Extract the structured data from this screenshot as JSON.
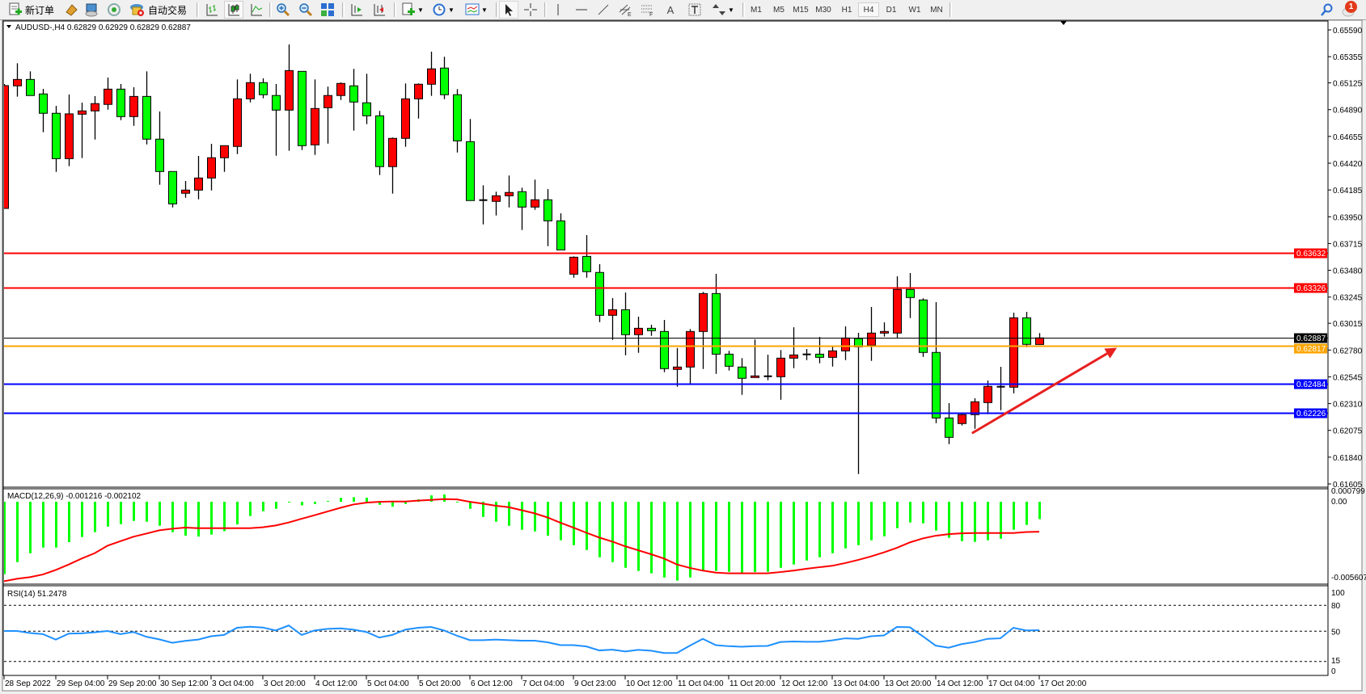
{
  "toolbar": {
    "new_order_label": "新订单",
    "auto_trading_label": "自动交易",
    "timeframes": [
      "M1",
      "M5",
      "M15",
      "M30",
      "H1",
      "H4",
      "D1",
      "W1",
      "MN"
    ],
    "active_timeframe": "H4",
    "notification_count": "1",
    "icons": [
      "new-order-icon",
      "history-center-icon",
      "market-watch-icon",
      "signals-icon",
      "auto-trading-icon",
      "bar-chart-icon",
      "candlestick-icon",
      "line-chart-icon",
      "zoom-in-icon",
      "zoom-out-icon",
      "tile-windows-icon",
      "chart-shift-icon",
      "auto-scroll-icon",
      "new-chart-icon",
      "periodicity-icon",
      "templates-icon",
      "cursor-icon",
      "crosshair-icon",
      "vertical-line-icon",
      "horizontal-line-icon",
      "trendline-icon",
      "equidistant-channel-icon",
      "fibonacci-icon",
      "text-icon",
      "text-label-icon",
      "arrows-icon",
      "search-icon",
      "notifications-icon"
    ]
  },
  "chart": {
    "title": "AUDUSD-,H4  0.62829 0.62929 0.62829 0.62887",
    "colors": {
      "bull": "#ff0000",
      "bear": "#00ff00",
      "outline": "#000000",
      "macd_hist": "#00ff00",
      "macd_signal": "#ff0000",
      "rsi": "#1e90ff",
      "arrow": "#e82020"
    }
  },
  "chart_data": [
    {
      "type": "candlestick",
      "symbol": "AUDUSD-",
      "timeframe": "H4",
      "ohlc_fields": [
        "open",
        "high",
        "low",
        "close"
      ],
      "ylim": [
        0.61605,
        0.6559
      ],
      "y_ticks": [
        "0.65590",
        "0.65355",
        "0.65125",
        "0.64890",
        "0.64655",
        "0.64420",
        "0.64185",
        "0.63950",
        "0.63715",
        "0.63480",
        "0.63245",
        "0.63015",
        "0.62780",
        "0.62545",
        "0.62310",
        "0.62075",
        "0.61840",
        "0.61605"
      ],
      "x_ticks": [
        "28 Sep 2022",
        "29 Sep 04:00",
        "29 Sep 20:00",
        "30 Sep 12:00",
        "3 Oct 04:00",
        "3 Oct 20:00",
        "4 Oct 12:00",
        "5 Oct 04:00",
        "5 Oct 20:00",
        "6 Oct 12:00",
        "7 Oct 04:00",
        "9 Oct 23:00",
        "10 Oct 12:00",
        "11 Oct 04:00",
        "11 Oct 20:00",
        "12 Oct 12:00",
        "13 Oct 04:00",
        "13 Oct 20:00",
        "14 Oct 12:00",
        "17 Oct 04:00",
        "17 Oct 20:00"
      ],
      "x_tick_every_n_bars": 4,
      "candles": [
        [
          0.64023,
          0.65115,
          0.64023,
          0.65101
        ],
        [
          0.65099,
          0.65297,
          0.65004,
          0.65155
        ],
        [
          0.65155,
          0.65226,
          0.65014,
          0.65014
        ],
        [
          0.65028,
          0.65072,
          0.64692,
          0.64858
        ],
        [
          0.64858,
          0.64923,
          0.64344,
          0.6446
        ],
        [
          0.6446,
          0.65023,
          0.64394,
          0.64853
        ],
        [
          0.6485,
          0.64952,
          0.64465,
          0.64879
        ],
        [
          0.64879,
          0.65009,
          0.64628,
          0.64943
        ],
        [
          0.64936,
          0.65172,
          0.6489,
          0.6507
        ],
        [
          0.6507,
          0.65115,
          0.64798,
          0.64829
        ],
        [
          0.64829,
          0.65087,
          0.64748,
          0.65006
        ],
        [
          0.65006,
          0.65226,
          0.64585,
          0.64631
        ],
        [
          0.64631,
          0.64874,
          0.64231,
          0.64347
        ],
        [
          0.64347,
          0.64347,
          0.64032,
          0.64063
        ],
        [
          0.64156,
          0.64264,
          0.64117,
          0.64184
        ],
        [
          0.64184,
          0.64484,
          0.64103,
          0.6429
        ],
        [
          0.6429,
          0.6459,
          0.64181,
          0.64468
        ],
        [
          0.64468,
          0.64574,
          0.64344,
          0.64574
        ],
        [
          0.64567,
          0.65155,
          0.645,
          0.64985
        ],
        [
          0.64985,
          0.65205,
          0.64954,
          0.65127
        ],
        [
          0.65127,
          0.65165,
          0.6499,
          0.65021
        ],
        [
          0.65014,
          0.65115,
          0.64486,
          0.64886
        ],
        [
          0.64886,
          0.65462,
          0.64529,
          0.65233
        ],
        [
          0.65226,
          0.65226,
          0.64536,
          0.64574
        ],
        [
          0.64581,
          0.65155,
          0.64493,
          0.649
        ],
        [
          0.64907,
          0.65092,
          0.64592,
          0.65014
        ],
        [
          0.65014,
          0.65129,
          0.64975,
          0.6512
        ],
        [
          0.65099,
          0.65248,
          0.64706,
          0.64957
        ],
        [
          0.6495,
          0.65205,
          0.64763,
          0.64836
        ],
        [
          0.64836,
          0.64879,
          0.64316,
          0.6439
        ],
        [
          0.6439,
          0.64645,
          0.64153,
          0.64638
        ],
        [
          0.64638,
          0.6512,
          0.64564,
          0.64985
        ],
        [
          0.64985,
          0.6512,
          0.64812,
          0.65113
        ],
        [
          0.65113,
          0.65399,
          0.65011,
          0.65248
        ],
        [
          0.65255,
          0.65354,
          0.64982,
          0.65021
        ],
        [
          0.65021,
          0.6507,
          0.64514,
          0.64616
        ],
        [
          0.64609,
          0.64808,
          0.64092,
          0.64092
        ],
        [
          0.64096,
          0.64226,
          0.63883,
          0.64096
        ],
        [
          0.64085,
          0.6417,
          0.63961,
          0.64134
        ],
        [
          0.64134,
          0.64312,
          0.64032,
          0.64163
        ],
        [
          0.6417,
          0.64205,
          0.63834,
          0.64035
        ],
        [
          0.64035,
          0.64276,
          0.64011,
          0.64099
        ],
        [
          0.64099,
          0.64193,
          0.63692,
          0.63914
        ],
        [
          0.63914,
          0.6398,
          0.63659,
          0.63659
        ],
        [
          0.63446,
          0.63602,
          0.63415,
          0.63595
        ],
        [
          0.63602,
          0.63789,
          0.63415,
          0.63468
        ],
        [
          0.63461,
          0.63534,
          0.63025,
          0.63085
        ],
        [
          0.63085,
          0.63236,
          0.62869,
          0.63134
        ],
        [
          0.63134,
          0.63285,
          0.62734,
          0.62915
        ],
        [
          0.62915,
          0.63073,
          0.62756,
          0.62971
        ],
        [
          0.62971,
          0.63002,
          0.62905,
          0.6295
        ],
        [
          0.62943,
          0.63044,
          0.62586,
          0.62617
        ],
        [
          0.6261,
          0.62798,
          0.62458,
          0.62631
        ],
        [
          0.62631,
          0.62964,
          0.62486,
          0.62943
        ],
        [
          0.62943,
          0.6329,
          0.62614,
          0.63276
        ],
        [
          0.63276,
          0.63449,
          0.62571,
          0.62744
        ],
        [
          0.62744,
          0.62773,
          0.626,
          0.62638
        ],
        [
          0.62631,
          0.62709,
          0.62387,
          0.62532
        ],
        [
          0.62539,
          0.62874,
          0.62539,
          0.62553
        ],
        [
          0.6255,
          0.62739,
          0.62515,
          0.6255
        ],
        [
          0.62546,
          0.6278,
          0.62344,
          0.62709
        ],
        [
          0.62709,
          0.6298,
          0.62621,
          0.62737
        ],
        [
          0.62742,
          0.62789,
          0.62692,
          0.62742
        ],
        [
          0.62744,
          0.62895,
          0.62664,
          0.62716
        ],
        [
          0.62716,
          0.62813,
          0.62635,
          0.62773
        ],
        [
          0.62773,
          0.62988,
          0.62692,
          0.62886
        ],
        [
          0.62881,
          0.62931,
          0.61692,
          0.62808
        ],
        [
          0.62822,
          0.63158,
          0.62685,
          0.62929
        ],
        [
          0.62929,
          0.63023,
          0.62898,
          0.62943
        ],
        [
          0.62929,
          0.63427,
          0.62886,
          0.63312
        ],
        [
          0.63312,
          0.63456,
          0.63061,
          0.63241
        ],
        [
          0.6322,
          0.63234,
          0.6272,
          0.62759
        ],
        [
          0.62759,
          0.632,
          0.62139,
          0.62184
        ],
        [
          0.62184,
          0.62314,
          0.61954,
          0.62014
        ],
        [
          0.62135,
          0.6222,
          0.62118,
          0.62213
        ],
        [
          0.62213,
          0.62357,
          0.62089,
          0.62326
        ],
        [
          0.62319,
          0.62513,
          0.62217,
          0.62461
        ],
        [
          0.62458,
          0.62633,
          0.62252,
          0.62458
        ],
        [
          0.62454,
          0.63108,
          0.624,
          0.63063
        ],
        [
          0.63063,
          0.63115,
          0.62805,
          0.6283
        ],
        [
          0.62829,
          0.62929,
          0.62829,
          0.62887
        ]
      ],
      "horizontal_lines": [
        {
          "price": 0.63632,
          "label": "0.63632",
          "color": "#ff0000"
        },
        {
          "price": 0.63326,
          "label": "0.63326",
          "color": "#ff0000"
        },
        {
          "price": 0.62887,
          "label": "0.62887",
          "color": "#000000"
        },
        {
          "price": 0.62817,
          "label": "0.62817",
          "color": "#ffa500"
        },
        {
          "price": 0.62484,
          "label": "0.62484",
          "color": "#0000ff"
        },
        {
          "price": 0.62226,
          "label": "0.62226",
          "color": "#0000ff"
        }
      ],
      "annotation_arrow": {
        "from": {
          "bar": 74.8,
          "price": 0.6205
        },
        "to": {
          "bar": 86,
          "price": 0.628
        },
        "color": "#e82020"
      }
    },
    {
      "type": "bar+line",
      "label": "MACD(12,26,9) -0.001216 -0.002102",
      "ylim": [
        -0.005607,
        0.000799
      ],
      "y_ticks": [
        "0.000799",
        "0.00",
        "-0.005607"
      ],
      "histogram": [
        -0.00508,
        -0.00423,
        -0.00361,
        -0.00321,
        -0.00321,
        -0.00283,
        -0.00247,
        -0.00213,
        -0.00174,
        -0.00157,
        -0.00134,
        -0.0014,
        -0.00168,
        -0.00213,
        -0.00238,
        -0.00244,
        -0.0023,
        -0.00206,
        -0.00159,
        -0.001,
        -0.00066,
        -0.00049,
        -4e-05,
        -0.00025,
        -0.00015,
        6e-05,
        0.00028,
        0.00032,
        0.00028,
        -0.00021,
        -0.00034,
        -0.00015,
        0.00017,
        0.00045,
        0.00051,
        -2e-05,
        -0.00049,
        -0.00106,
        -0.0014,
        -0.00168,
        -0.00196,
        -0.00208,
        -0.00238,
        -0.0027,
        -0.00304,
        -0.00338,
        -0.00389,
        -0.00423,
        -0.00463,
        -0.00485,
        -0.00502,
        -0.00531,
        -0.00553,
        -0.00531,
        -0.00481,
        -0.00485,
        -0.00491,
        -0.00502,
        -0.00493,
        -0.00491,
        -0.00463,
        -0.0044,
        -0.00412,
        -0.00389,
        -0.00361,
        -0.00327,
        -0.00304,
        -0.0027,
        -0.00242,
        -0.00185,
        -0.00145,
        -0.00151,
        -0.00202,
        -0.00253,
        -0.00276,
        -0.00281,
        -0.0027,
        -0.00259,
        -0.00196,
        -0.00162,
        -0.001216
      ],
      "signal": [
        -0.00557,
        -0.0054,
        -0.00529,
        -0.0051,
        -0.00478,
        -0.0044,
        -0.00398,
        -0.00361,
        -0.00308,
        -0.00276,
        -0.00245,
        -0.00223,
        -0.002,
        -0.00189,
        -0.00181,
        -0.00185,
        -0.00185,
        -0.00185,
        -0.00185,
        -0.00185,
        -0.00179,
        -0.00166,
        -0.00145,
        -0.00119,
        -0.00094,
        -0.00068,
        -0.00042,
        -0.00019,
        -6e-05,
        0,
        2e-05,
        2e-05,
        8e-05,
        0.00013,
        0.00019,
        0.00017,
        0,
        -0.00013,
        -0.00028,
        -0.00038,
        -0.00059,
        -0.00081,
        -0.0011,
        -0.00147,
        -0.00181,
        -0.00217,
        -0.00251,
        -0.00279,
        -0.00312,
        -0.0034,
        -0.00368,
        -0.00398,
        -0.0044,
        -0.00464,
        -0.00483,
        -0.00497,
        -0.00502,
        -0.00502,
        -0.00502,
        -0.00502,
        -0.00493,
        -0.00483,
        -0.0047,
        -0.00459,
        -0.00449,
        -0.0043,
        -0.00408,
        -0.00383,
        -0.00355,
        -0.00323,
        -0.00285,
        -0.00257,
        -0.00238,
        -0.00227,
        -0.00221,
        -0.00219,
        -0.00219,
        -0.00219,
        -0.00219,
        -0.00212,
        -0.002102
      ]
    },
    {
      "type": "line",
      "label": "RSI(14) 51.2478",
      "ylim": [
        0,
        100
      ],
      "y_ticks": [
        "100",
        "80",
        "50",
        "15",
        "0"
      ],
      "levels": [
        80,
        50,
        15
      ],
      "values": [
        50.3,
        50.3,
        47.9,
        46.7,
        40.3,
        47.3,
        47.6,
        48.8,
        50.3,
        46.7,
        49.1,
        43.6,
        40.6,
        36.6,
        38.8,
        40.3,
        44.2,
        45.7,
        54,
        55.2,
        54.3,
        50.9,
        56.7,
        45.7,
        50.9,
        52.7,
        53.3,
        51.8,
        49.1,
        42.7,
        45.7,
        51.8,
        54,
        54.9,
        50.9,
        44.8,
        39.7,
        39.7,
        40.3,
        39.7,
        39.1,
        39.1,
        37.2,
        33.9,
        33.9,
        32.4,
        27.8,
        28.7,
        26.6,
        28.4,
        27.5,
        24.8,
        24.8,
        33.3,
        41.2,
        33.9,
        32.7,
        32.1,
        32.7,
        33,
        37.5,
        38.1,
        37.8,
        37.8,
        39.4,
        41.8,
        41.2,
        44.2,
        45.1,
        54.9,
        54.6,
        44.2,
        33.3,
        30.9,
        35.1,
        37.5,
        41.2,
        41.8,
        54,
        50.9,
        51.2478
      ]
    }
  ]
}
